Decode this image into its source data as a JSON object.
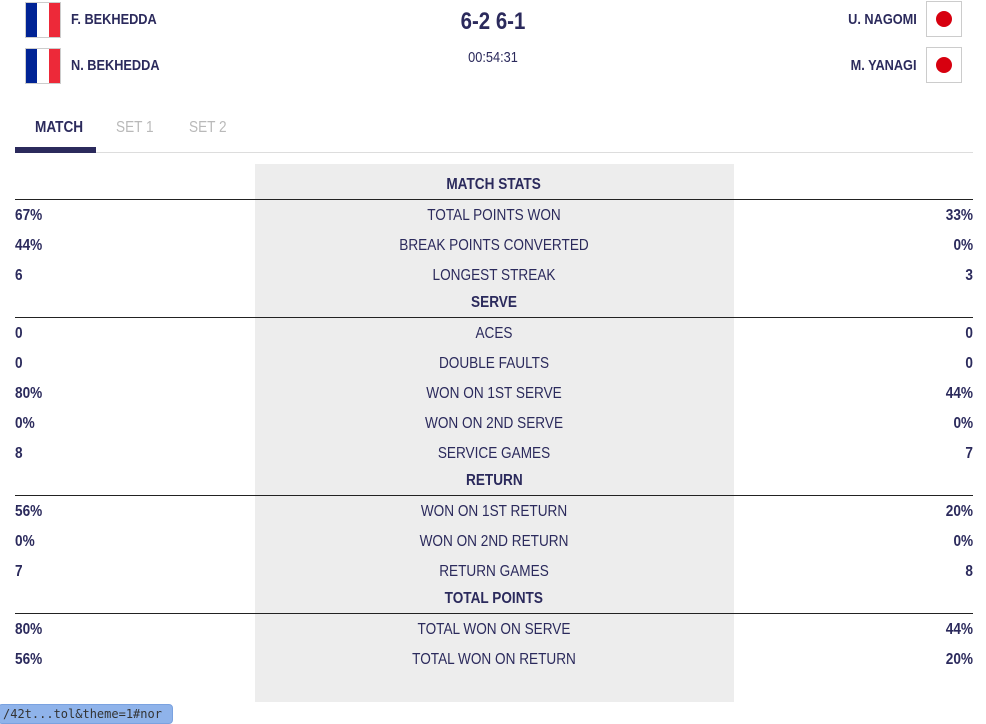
{
  "header": {
    "team1": [
      {
        "name": "F. BEKHEDDA",
        "flag": "france-flag"
      },
      {
        "name": "N. BEKHEDDA",
        "flag": "france-flag"
      }
    ],
    "team2": [
      {
        "name": "U. NAGOMI",
        "flag": "japan-flag"
      },
      {
        "name": "M. YANAGI",
        "flag": "japan-flag"
      }
    ],
    "score": "6-2 6-1",
    "duration": "00:54:31"
  },
  "tabs": [
    {
      "label": "MATCH",
      "active": true
    },
    {
      "label": "SET 1"
    },
    {
      "label": "SET 2"
    }
  ],
  "sections": [
    {
      "title": "MATCH STATS",
      "rows": [
        {
          "label": "TOTAL POINTS WON",
          "left": "67%",
          "right": "33%"
        },
        {
          "label": "BREAK POINTS CONVERTED",
          "left": "44%",
          "right": "0%"
        },
        {
          "label": "LONGEST STREAK",
          "left": "6",
          "right": "3"
        }
      ]
    },
    {
      "title": "SERVE",
      "rows": [
        {
          "label": "ACES",
          "left": "0",
          "right": "0"
        },
        {
          "label": "DOUBLE FAULTS",
          "left": "0",
          "right": "0"
        },
        {
          "label": "WON ON 1ST SERVE",
          "left": "80%",
          "right": "44%"
        },
        {
          "label": "WON ON 2ND SERVE",
          "left": "0%",
          "right": "0%"
        },
        {
          "label": "SERVICE GAMES",
          "left": "8",
          "right": "7"
        }
      ]
    },
    {
      "title": "RETURN",
      "rows": [
        {
          "label": "WON ON 1ST RETURN",
          "left": "56%",
          "right": "20%"
        },
        {
          "label": "WON ON 2ND RETURN",
          "left": "0%",
          "right": "0%"
        },
        {
          "label": "RETURN GAMES",
          "left": "7",
          "right": "8"
        }
      ]
    },
    {
      "title": "TOTAL POINTS",
      "rows": [
        {
          "label": "TOTAL WON ON SERVE",
          "left": "80%",
          "right": "44%"
        },
        {
          "label": "TOTAL WON ON RETURN",
          "left": "56%",
          "right": "20%"
        }
      ]
    }
  ],
  "status_url": "/42t...tol&theme=1#nor",
  "colors": {
    "navy": "#2b2a5c",
    "france_blue": "#002395",
    "france_red": "#ed2939",
    "japan_red": "#d7000f"
  }
}
